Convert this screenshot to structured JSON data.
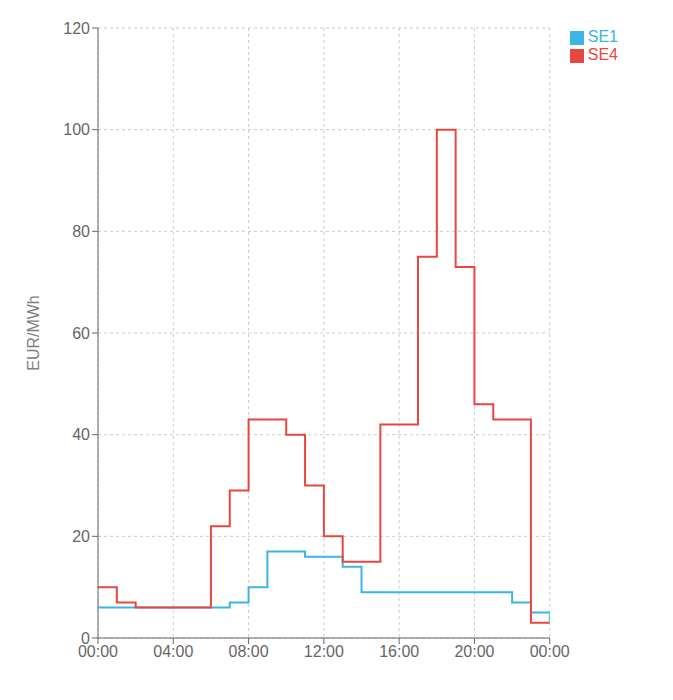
{
  "chart_data": {
    "type": "step",
    "ylabel": "EUR/MWh",
    "x": [
      0,
      1,
      2,
      3,
      4,
      5,
      6,
      7,
      8,
      9,
      10,
      11,
      12,
      13,
      14,
      15,
      16,
      17,
      18,
      19,
      20,
      21,
      22,
      23,
      24
    ],
    "xlim": [
      0,
      24
    ],
    "xticks": [
      {
        "value": 0,
        "label": "00:00"
      },
      {
        "value": 4,
        "label": "04:00"
      },
      {
        "value": 8,
        "label": "08:00"
      },
      {
        "value": 12,
        "label": "12:00"
      },
      {
        "value": 16,
        "label": "16:00"
      },
      {
        "value": 20,
        "label": "20:00"
      },
      {
        "value": 24,
        "label": "00:00"
      }
    ],
    "ylim": [
      0,
      120
    ],
    "yticks": [
      0,
      20,
      40,
      60,
      80,
      100,
      120
    ],
    "grid": true,
    "legend": "right",
    "series": [
      {
        "name": "SE1",
        "color": "#3cb4e5",
        "values": [
          6,
          6,
          6,
          6,
          6,
          6,
          6,
          7,
          10,
          17,
          17,
          16,
          16,
          14,
          9,
          9,
          9,
          9,
          9,
          9,
          9,
          9,
          7,
          5,
          3
        ]
      },
      {
        "name": "SE4",
        "color": "#e8473f",
        "values": [
          10,
          7,
          6,
          6,
          6,
          6,
          22,
          29,
          43,
          43,
          40,
          30,
          20,
          15,
          15,
          42,
          42,
          75,
          100,
          73,
          46,
          43,
          43,
          3,
          3
        ]
      }
    ]
  }
}
